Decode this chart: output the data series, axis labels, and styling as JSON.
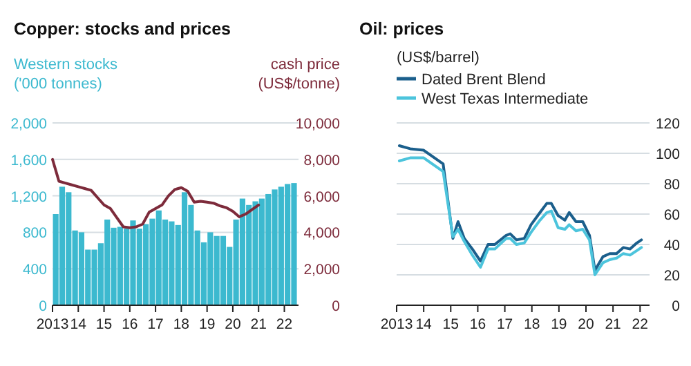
{
  "chart_data": [
    {
      "type": "bar",
      "title": "Copper: stocks and prices",
      "ylabel": "Western stocks\n('000 tonnes)",
      "y2label": "cash price\n(US$/tonne)",
      "legend": false,
      "grid": "y",
      "x": [
        2013.125,
        2013.375,
        2013.625,
        2013.875,
        2014.125,
        2014.375,
        2014.625,
        2014.875,
        2015.125,
        2015.375,
        2015.625,
        2015.875,
        2016.125,
        2016.375,
        2016.625,
        2016.875,
        2017.125,
        2017.375,
        2017.625,
        2017.875,
        2018.125,
        2018.375,
        2018.625,
        2018.875,
        2019.125,
        2019.375,
        2019.625,
        2019.875,
        2020.125,
        2020.375,
        2020.625,
        2020.875,
        2021.125,
        2021.375,
        2021.625,
        2021.875,
        2022.125,
        2022.375
      ],
      "series": [
        {
          "color": "#3cb9cf",
          "values": [
            1000,
            1300,
            1240,
            820,
            800,
            610,
            610,
            680,
            940,
            850,
            860,
            840,
            930,
            840,
            890,
            950,
            1040,
            940,
            920,
            880,
            1240,
            1100,
            820,
            690,
            800,
            760,
            760,
            640,
            940,
            1170,
            1100,
            1140,
            1170,
            1220,
            1270,
            1300,
            1330,
            1340
          ]
        },
        {
          "type": "line",
          "axis": "y2",
          "color": "#7d2b3b",
          "x": [
            2013.0,
            2013.25,
            2013.5,
            2013.75,
            2014.0,
            2014.25,
            2014.5,
            2014.75,
            2015.0,
            2015.25,
            2015.5,
            2015.75,
            2016.0,
            2016.25,
            2016.5,
            2016.75,
            2017.0,
            2017.25,
            2017.5,
            2017.75,
            2018.0,
            2018.25,
            2018.5,
            2018.75,
            2019.0,
            2019.25,
            2019.5,
            2019.75,
            2020.0,
            2020.25,
            2020.5,
            2020.75,
            2021.0
          ],
          "values": [
            8000,
            6800,
            6700,
            6600,
            6500,
            6400,
            6300,
            5900,
            5500,
            5300,
            4800,
            4300,
            4250,
            4300,
            4450,
            5100,
            5300,
            5500,
            6000,
            6350,
            6450,
            6250,
            5650,
            5700,
            5650,
            5600,
            5450,
            5350,
            5150,
            4850,
            5000,
            5250,
            5500
          ]
        }
      ],
      "xlim": [
        2013,
        2022.55
      ],
      "xticks": [
        {
          "value": 2013,
          "label": "2013"
        },
        {
          "value": 2014,
          "label": "14"
        },
        {
          "value": 2015,
          "label": "15"
        },
        {
          "value": 2016,
          "label": "16"
        },
        {
          "value": 2017,
          "label": "17"
        },
        {
          "value": 2018,
          "label": "18"
        },
        {
          "value": 2019,
          "label": "19"
        },
        {
          "value": 2020,
          "label": "20"
        },
        {
          "value": 2021,
          "label": "21"
        },
        {
          "value": 2022,
          "label": "22"
        }
      ],
      "ylim": [
        0,
        2000
      ],
      "yticks": [
        0,
        400,
        800,
        {
          "value": 1200,
          "label": "1,200"
        },
        {
          "value": 1600,
          "label": "1,600"
        },
        {
          "value": 2000,
          "label": "2,000"
        }
      ],
      "y2lim": [
        0,
        10000
      ],
      "y2ticks": [
        0,
        {
          "value": 2000,
          "label": "2,000"
        },
        {
          "value": 4000,
          "label": "4,000"
        },
        {
          "value": 6000,
          "label": "6,000"
        },
        {
          "value": 8000,
          "label": "8,000"
        },
        {
          "value": 10000,
          "label": "10,000"
        }
      ]
    },
    {
      "type": "line",
      "title": "Oil: prices",
      "subtitle": "(US$/barrel)",
      "legend": "top left",
      "grid": "y",
      "series": [
        {
          "name": "Dated Brent Blend",
          "color": "#1b5f8c",
          "x": [
            2013.1,
            2013.5,
            2014.0,
            2014.72,
            2015.08,
            2015.27,
            2015.5,
            2015.8,
            2016.1,
            2016.38,
            2016.63,
            2017.05,
            2017.2,
            2017.43,
            2017.72,
            2017.97,
            2018.3,
            2018.55,
            2018.72,
            2018.97,
            2019.22,
            2019.38,
            2019.63,
            2019.88,
            2020.13,
            2020.33,
            2020.63,
            2020.88,
            2021.13,
            2021.38,
            2021.63,
            2021.88,
            2022.05
          ],
          "values": [
            105,
            103,
            102,
            93,
            44,
            55,
            44,
            37,
            29,
            40,
            40,
            46,
            47,
            43,
            44,
            53,
            61,
            67,
            67,
            59,
            56,
            61,
            55,
            55,
            46,
            23,
            32,
            34,
            34,
            38,
            37,
            41,
            43
          ]
        },
        {
          "name": "West Texas Intermediate",
          "color": "#4cc4dc",
          "x": [
            2013.1,
            2013.5,
            2014.0,
            2014.72,
            2015.08,
            2015.27,
            2015.5,
            2015.8,
            2016.1,
            2016.38,
            2016.63,
            2017.05,
            2017.2,
            2017.43,
            2017.72,
            2017.97,
            2018.3,
            2018.55,
            2018.72,
            2018.97,
            2019.22,
            2019.38,
            2019.63,
            2019.88,
            2020.13,
            2020.33,
            2020.63,
            2020.88,
            2021.13,
            2021.38,
            2021.63,
            2021.88,
            2022.05
          ],
          "values": [
            95,
            97,
            97,
            88,
            45,
            50,
            42,
            33,
            25,
            37,
            37,
            44,
            44,
            40,
            41,
            48,
            56,
            61,
            62,
            51,
            50,
            53,
            49,
            50,
            43,
            20,
            28,
            30,
            31,
            34,
            33,
            36,
            38
          ]
        }
      ],
      "xlim": [
        2013,
        2022.35
      ],
      "xticks": [
        {
          "value": 2013,
          "label": "2013"
        },
        {
          "value": 2014,
          "label": "14"
        },
        {
          "value": 2015,
          "label": "15"
        },
        {
          "value": 2016,
          "label": "16"
        },
        {
          "value": 2017,
          "label": "17"
        },
        {
          "value": 2018,
          "label": "18"
        },
        {
          "value": 2019,
          "label": "19"
        },
        {
          "value": 2020,
          "label": "20"
        },
        {
          "value": 2021,
          "label": "21"
        },
        {
          "value": 2022,
          "label": "22"
        }
      ],
      "ylim": [
        0,
        120
      ],
      "yticks": [
        0,
        20,
        40,
        60,
        80,
        100,
        120
      ]
    }
  ]
}
